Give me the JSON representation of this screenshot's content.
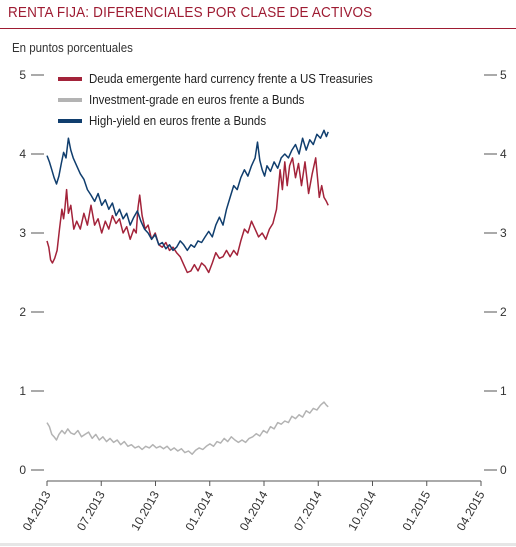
{
  "chart_data": {
    "type": "line",
    "title": "RENTA FIJA: DIFERENCIALES POR CLASE DE ACTIVOS",
    "ylabel": "En puntos porcentuales",
    "ylim": [
      0,
      5
    ],
    "yticks": [
      0,
      1,
      2,
      3,
      4,
      5
    ],
    "ytick_labels": [
      "0",
      "1",
      "2",
      "3",
      "4",
      "5"
    ],
    "xlim": [
      "2013-04-01",
      "2015-04-01"
    ],
    "xtick_labels": [
      "04.2013",
      "07.2013",
      "10.2013",
      "01.2014",
      "04.2014",
      "07.2014",
      "10.2014",
      "01.2015",
      "04.2015"
    ],
    "legend": "top-left",
    "series": [
      {
        "name": "Deuda emergente hard currency frente a US Treasuries",
        "color": "#a3233a",
        "values": [
          [
            0,
            2.9
          ],
          [
            3,
            2.82
          ],
          [
            6,
            2.66
          ],
          [
            9,
            2.62
          ],
          [
            13,
            2.68
          ],
          [
            17,
            2.78
          ],
          [
            21,
            3.05
          ],
          [
            25,
            3.3
          ],
          [
            28,
            3.18
          ],
          [
            30,
            3.3
          ],
          [
            33,
            3.55
          ],
          [
            36,
            3.25
          ],
          [
            40,
            3.35
          ],
          [
            45,
            3.05
          ],
          [
            50,
            3.15
          ],
          [
            56,
            3.05
          ],
          [
            62,
            3.25
          ],
          [
            68,
            3.1
          ],
          [
            74,
            3.35
          ],
          [
            80,
            3.1
          ],
          [
            86,
            3.18
          ],
          [
            92,
            3.0
          ],
          [
            98,
            3.15
          ],
          [
            104,
            3.05
          ],
          [
            110,
            3.22
          ],
          [
            116,
            3.12
          ],
          [
            122,
            3.18
          ],
          [
            128,
            3.0
          ],
          [
            134,
            3.08
          ],
          [
            140,
            2.92
          ],
          [
            146,
            3.05
          ],
          [
            150,
            3.0
          ],
          [
            153,
            3.32
          ],
          [
            156,
            3.48
          ],
          [
            160,
            3.22
          ],
          [
            165,
            3.05
          ],
          [
            170,
            3.1
          ],
          [
            176,
            2.92
          ],
          [
            182,
            3.0
          ],
          [
            188,
            2.85
          ],
          [
            194,
            2.82
          ],
          [
            200,
            2.88
          ],
          [
            206,
            2.78
          ],
          [
            212,
            2.82
          ],
          [
            218,
            2.75
          ],
          [
            224,
            2.7
          ],
          [
            230,
            2.6
          ],
          [
            236,
            2.5
          ],
          [
            242,
            2.52
          ],
          [
            248,
            2.6
          ],
          [
            254,
            2.52
          ],
          [
            260,
            2.62
          ],
          [
            266,
            2.58
          ],
          [
            272,
            2.5
          ],
          [
            278,
            2.62
          ],
          [
            284,
            2.75
          ],
          [
            290,
            2.68
          ],
          [
            296,
            2.7
          ],
          [
            302,
            2.78
          ],
          [
            308,
            2.7
          ],
          [
            314,
            2.78
          ],
          [
            320,
            2.72
          ],
          [
            326,
            2.9
          ],
          [
            332,
            3.05
          ],
          [
            338,
            3.0
          ],
          [
            344,
            3.15
          ],
          [
            350,
            3.05
          ],
          [
            356,
            2.95
          ],
          [
            362,
            3.0
          ],
          [
            368,
            2.92
          ],
          [
            374,
            3.05
          ],
          [
            380,
            3.12
          ],
          [
            386,
            3.3
          ],
          [
            392,
            3.8
          ],
          [
            396,
            3.55
          ],
          [
            400,
            3.9
          ],
          [
            404,
            3.6
          ],
          [
            408,
            3.85
          ],
          [
            413,
            3.95
          ],
          [
            418,
            3.7
          ],
          [
            423,
            3.88
          ],
          [
            428,
            3.6
          ],
          [
            434,
            3.9
          ],
          [
            440,
            3.5
          ],
          [
            446,
            3.75
          ],
          [
            452,
            3.95
          ],
          [
            458,
            3.45
          ],
          [
            462,
            3.6
          ],
          [
            466,
            3.45
          ],
          [
            470,
            3.4
          ],
          [
            473,
            3.35
          ]
        ]
      },
      {
        "name": "Investment-grade en euros frente a Bunds",
        "color": "#b3b3b3",
        "values": [
          [
            0,
            0.6
          ],
          [
            4,
            0.55
          ],
          [
            8,
            0.45
          ],
          [
            12,
            0.42
          ],
          [
            16,
            0.38
          ],
          [
            20,
            0.45
          ],
          [
            25,
            0.5
          ],
          [
            30,
            0.46
          ],
          [
            35,
            0.52
          ],
          [
            40,
            0.47
          ],
          [
            46,
            0.45
          ],
          [
            52,
            0.5
          ],
          [
            58,
            0.42
          ],
          [
            64,
            0.45
          ],
          [
            70,
            0.48
          ],
          [
            76,
            0.4
          ],
          [
            82,
            0.45
          ],
          [
            88,
            0.38
          ],
          [
            94,
            0.42
          ],
          [
            100,
            0.36
          ],
          [
            106,
            0.4
          ],
          [
            112,
            0.35
          ],
          [
            118,
            0.38
          ],
          [
            124,
            0.32
          ],
          [
            130,
            0.36
          ],
          [
            136,
            0.3
          ],
          [
            142,
            0.32
          ],
          [
            148,
            0.28
          ],
          [
            154,
            0.3
          ],
          [
            160,
            0.26
          ],
          [
            166,
            0.3
          ],
          [
            172,
            0.28
          ],
          [
            178,
            0.32
          ],
          [
            184,
            0.28
          ],
          [
            190,
            0.3
          ],
          [
            196,
            0.27
          ],
          [
            202,
            0.3
          ],
          [
            208,
            0.25
          ],
          [
            214,
            0.28
          ],
          [
            220,
            0.24
          ],
          [
            226,
            0.27
          ],
          [
            232,
            0.22
          ],
          [
            238,
            0.24
          ],
          [
            244,
            0.2
          ],
          [
            250,
            0.25
          ],
          [
            256,
            0.28
          ],
          [
            262,
            0.26
          ],
          [
            268,
            0.3
          ],
          [
            274,
            0.33
          ],
          [
            280,
            0.3
          ],
          [
            286,
            0.36
          ],
          [
            292,
            0.34
          ],
          [
            298,
            0.4
          ],
          [
            304,
            0.36
          ],
          [
            310,
            0.42
          ],
          [
            316,
            0.38
          ],
          [
            322,
            0.35
          ],
          [
            328,
            0.38
          ],
          [
            334,
            0.35
          ],
          [
            340,
            0.4
          ],
          [
            346,
            0.42
          ],
          [
            352,
            0.46
          ],
          [
            358,
            0.43
          ],
          [
            364,
            0.5
          ],
          [
            370,
            0.47
          ],
          [
            376,
            0.55
          ],
          [
            382,
            0.52
          ],
          [
            388,
            0.6
          ],
          [
            394,
            0.58
          ],
          [
            400,
            0.62
          ],
          [
            406,
            0.6
          ],
          [
            412,
            0.68
          ],
          [
            418,
            0.65
          ],
          [
            424,
            0.7
          ],
          [
            430,
            0.67
          ],
          [
            436,
            0.75
          ],
          [
            442,
            0.72
          ],
          [
            448,
            0.78
          ],
          [
            454,
            0.76
          ],
          [
            460,
            0.82
          ],
          [
            466,
            0.86
          ],
          [
            470,
            0.82
          ],
          [
            473,
            0.8
          ]
        ]
      },
      {
        "name": "High-yield en euros frente a Bunds",
        "color": "#103e6e",
        "values": [
          [
            0,
            3.98
          ],
          [
            4,
            3.9
          ],
          [
            8,
            3.8
          ],
          [
            12,
            3.7
          ],
          [
            16,
            3.62
          ],
          [
            20,
            3.72
          ],
          [
            24,
            3.88
          ],
          [
            28,
            4.02
          ],
          [
            32,
            3.95
          ],
          [
            36,
            4.2
          ],
          [
            40,
            4.05
          ],
          [
            44,
            3.95
          ],
          [
            50,
            3.85
          ],
          [
            56,
            3.75
          ],
          [
            62,
            3.68
          ],
          [
            68,
            3.55
          ],
          [
            74,
            3.48
          ],
          [
            80,
            3.4
          ],
          [
            86,
            3.5
          ],
          [
            92,
            3.35
          ],
          [
            98,
            3.42
          ],
          [
            104,
            3.3
          ],
          [
            110,
            3.38
          ],
          [
            116,
            3.22
          ],
          [
            122,
            3.3
          ],
          [
            128,
            3.18
          ],
          [
            134,
            3.25
          ],
          [
            140,
            3.1
          ],
          [
            146,
            3.2
          ],
          [
            152,
            3.28
          ],
          [
            158,
            3.15
          ],
          [
            164,
            3.05
          ],
          [
            170,
            3.0
          ],
          [
            176,
            2.92
          ],
          [
            182,
            2.98
          ],
          [
            188,
            2.85
          ],
          [
            194,
            2.88
          ],
          [
            200,
            2.8
          ],
          [
            206,
            2.85
          ],
          [
            212,
            2.78
          ],
          [
            218,
            2.82
          ],
          [
            224,
            2.9
          ],
          [
            230,
            2.85
          ],
          [
            236,
            2.78
          ],
          [
            242,
            2.85
          ],
          [
            248,
            2.82
          ],
          [
            254,
            2.9
          ],
          [
            260,
            2.88
          ],
          [
            266,
            2.95
          ],
          [
            272,
            3.02
          ],
          [
            278,
            2.95
          ],
          [
            284,
            3.1
          ],
          [
            290,
            3.2
          ],
          [
            296,
            3.1
          ],
          [
            302,
            3.3
          ],
          [
            308,
            3.45
          ],
          [
            314,
            3.6
          ],
          [
            320,
            3.55
          ],
          [
            326,
            3.7
          ],
          [
            332,
            3.8
          ],
          [
            338,
            3.72
          ],
          [
            344,
            3.85
          ],
          [
            350,
            3.95
          ],
          [
            354,
            4.15
          ],
          [
            358,
            3.92
          ],
          [
            362,
            3.8
          ],
          [
            366,
            3.72
          ],
          [
            370,
            3.85
          ],
          [
            376,
            3.78
          ],
          [
            382,
            3.9
          ],
          [
            388,
            3.82
          ],
          [
            394,
            3.95
          ],
          [
            400,
            4.0
          ],
          [
            406,
            3.95
          ],
          [
            412,
            4.05
          ],
          [
            418,
            4.12
          ],
          [
            424,
            4.0
          ],
          [
            430,
            4.2
          ],
          [
            436,
            4.05
          ],
          [
            442,
            4.18
          ],
          [
            448,
            4.12
          ],
          [
            454,
            4.25
          ],
          [
            460,
            4.2
          ],
          [
            466,
            4.3
          ],
          [
            470,
            4.22
          ],
          [
            473,
            4.28
          ]
        ]
      }
    ]
  }
}
